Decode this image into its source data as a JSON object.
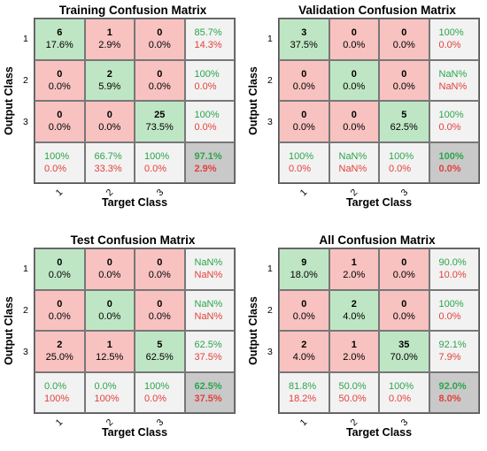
{
  "chart_data": [
    {
      "type": "table",
      "title": "Training Confusion Matrix",
      "xlabel": "Target Class",
      "ylabel": "Output Class",
      "row_ticks": [
        "1",
        "2",
        "3"
      ],
      "col_ticks": [
        "1",
        "2",
        "3"
      ],
      "counts": [
        [
          6,
          1,
          0
        ],
        [
          0,
          2,
          0
        ],
        [
          0,
          0,
          25
        ]
      ],
      "percents": [
        [
          "17.6%",
          "2.9%",
          "0.0%"
        ],
        [
          "0.0%",
          "5.9%",
          "0.0%"
        ],
        [
          "0.0%",
          "0.0%",
          "73.5%"
        ]
      ],
      "row_summary": [
        [
          "85.7%",
          "14.3%"
        ],
        [
          "100%",
          "0.0%"
        ],
        [
          "100%",
          "0.0%"
        ]
      ],
      "col_summary": [
        [
          "100%",
          "0.0%"
        ],
        [
          "66.7%",
          "33.3%"
        ],
        [
          "100%",
          "0.0%"
        ]
      ],
      "overall": [
        "97.1%",
        "2.9%"
      ]
    },
    {
      "type": "table",
      "title": "Validation Confusion Matrix",
      "xlabel": "Target Class",
      "ylabel": "Output Class",
      "row_ticks": [
        "1",
        "2",
        "3"
      ],
      "col_ticks": [
        "1",
        "2",
        "3"
      ],
      "counts": [
        [
          3,
          0,
          0
        ],
        [
          0,
          0,
          0
        ],
        [
          0,
          0,
          5
        ]
      ],
      "percents": [
        [
          "37.5%",
          "0.0%",
          "0.0%"
        ],
        [
          "0.0%",
          "0.0%",
          "0.0%"
        ],
        [
          "0.0%",
          "0.0%",
          "62.5%"
        ]
      ],
      "row_summary": [
        [
          "100%",
          "0.0%"
        ],
        [
          "NaN%",
          "NaN%"
        ],
        [
          "100%",
          "0.0%"
        ]
      ],
      "col_summary": [
        [
          "100%",
          "0.0%"
        ],
        [
          "NaN%",
          "NaN%"
        ],
        [
          "100%",
          "0.0%"
        ]
      ],
      "overall": [
        "100%",
        "0.0%"
      ]
    },
    {
      "type": "table",
      "title": "Test Confusion Matrix",
      "xlabel": "Target Class",
      "ylabel": "Output Class",
      "row_ticks": [
        "1",
        "2",
        "3"
      ],
      "col_ticks": [
        "1",
        "2",
        "3"
      ],
      "counts": [
        [
          0,
          0,
          0
        ],
        [
          0,
          0,
          0
        ],
        [
          2,
          1,
          5
        ]
      ],
      "percents": [
        [
          "0.0%",
          "0.0%",
          "0.0%"
        ],
        [
          "0.0%",
          "0.0%",
          "0.0%"
        ],
        [
          "25.0%",
          "12.5%",
          "62.5%"
        ]
      ],
      "row_summary": [
        [
          "NaN%",
          "NaN%"
        ],
        [
          "NaN%",
          "NaN%"
        ],
        [
          "62.5%",
          "37.5%"
        ]
      ],
      "col_summary": [
        [
          "0.0%",
          "100%"
        ],
        [
          "0.0%",
          "100%"
        ],
        [
          "100%",
          "0.0%"
        ]
      ],
      "overall": [
        "62.5%",
        "37.5%"
      ]
    },
    {
      "type": "table",
      "title": "All Confusion Matrix",
      "xlabel": "Target Class",
      "ylabel": "Output Class",
      "row_ticks": [
        "1",
        "2",
        "3"
      ],
      "col_ticks": [
        "1",
        "2",
        "3"
      ],
      "counts": [
        [
          9,
          1,
          0
        ],
        [
          0,
          2,
          0
        ],
        [
          2,
          1,
          35
        ]
      ],
      "percents": [
        [
          "18.0%",
          "2.0%",
          "0.0%"
        ],
        [
          "0.0%",
          "4.0%",
          "0.0%"
        ],
        [
          "4.0%",
          "2.0%",
          "70.0%"
        ]
      ],
      "row_summary": [
        [
          "90.0%",
          "10.0%"
        ],
        [
          "100%",
          "0.0%"
        ],
        [
          "92.1%",
          "7.9%"
        ]
      ],
      "col_summary": [
        [
          "81.8%",
          "18.2%"
        ],
        [
          "50.0%",
          "50.0%"
        ],
        [
          "100%",
          "0.0%"
        ]
      ],
      "overall": [
        "92.0%",
        "8.0%"
      ]
    }
  ]
}
